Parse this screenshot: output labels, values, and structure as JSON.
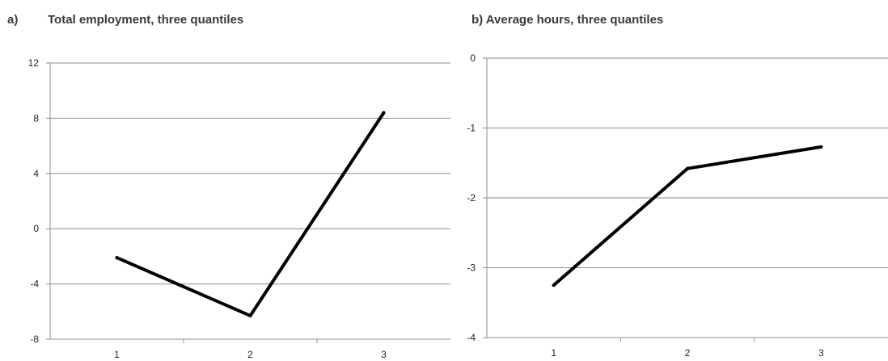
{
  "panels": [
    {
      "label": "a)",
      "title": "Total employment, three quantiles"
    },
    {
      "label": "",
      "title": "b) Average hours, three quantiles"
    }
  ],
  "chart_data": [
    {
      "type": "line",
      "title": "a)     Total employment, three quantiles",
      "categories": [
        "1",
        "2",
        "3"
      ],
      "series": [
        {
          "values": [
            -2.1,
            -6.3,
            8.4
          ],
          "color": "#000000"
        }
      ],
      "ylim": [
        -8,
        12
      ],
      "yticks": [
        12,
        8,
        4,
        0,
        -4,
        -8
      ],
      "grid": true,
      "legend": "none"
    },
    {
      "type": "line",
      "title": "b) Average hours, three quantiles",
      "categories": [
        "1",
        "2",
        "3"
      ],
      "series": [
        {
          "values": [
            -3.25,
            -1.58,
            -1.27
          ],
          "color": "#000000"
        }
      ],
      "ylim": [
        -4,
        0
      ],
      "yticks": [
        0,
        -1,
        -2,
        -3,
        -4
      ],
      "grid": true,
      "legend": "none"
    }
  ]
}
